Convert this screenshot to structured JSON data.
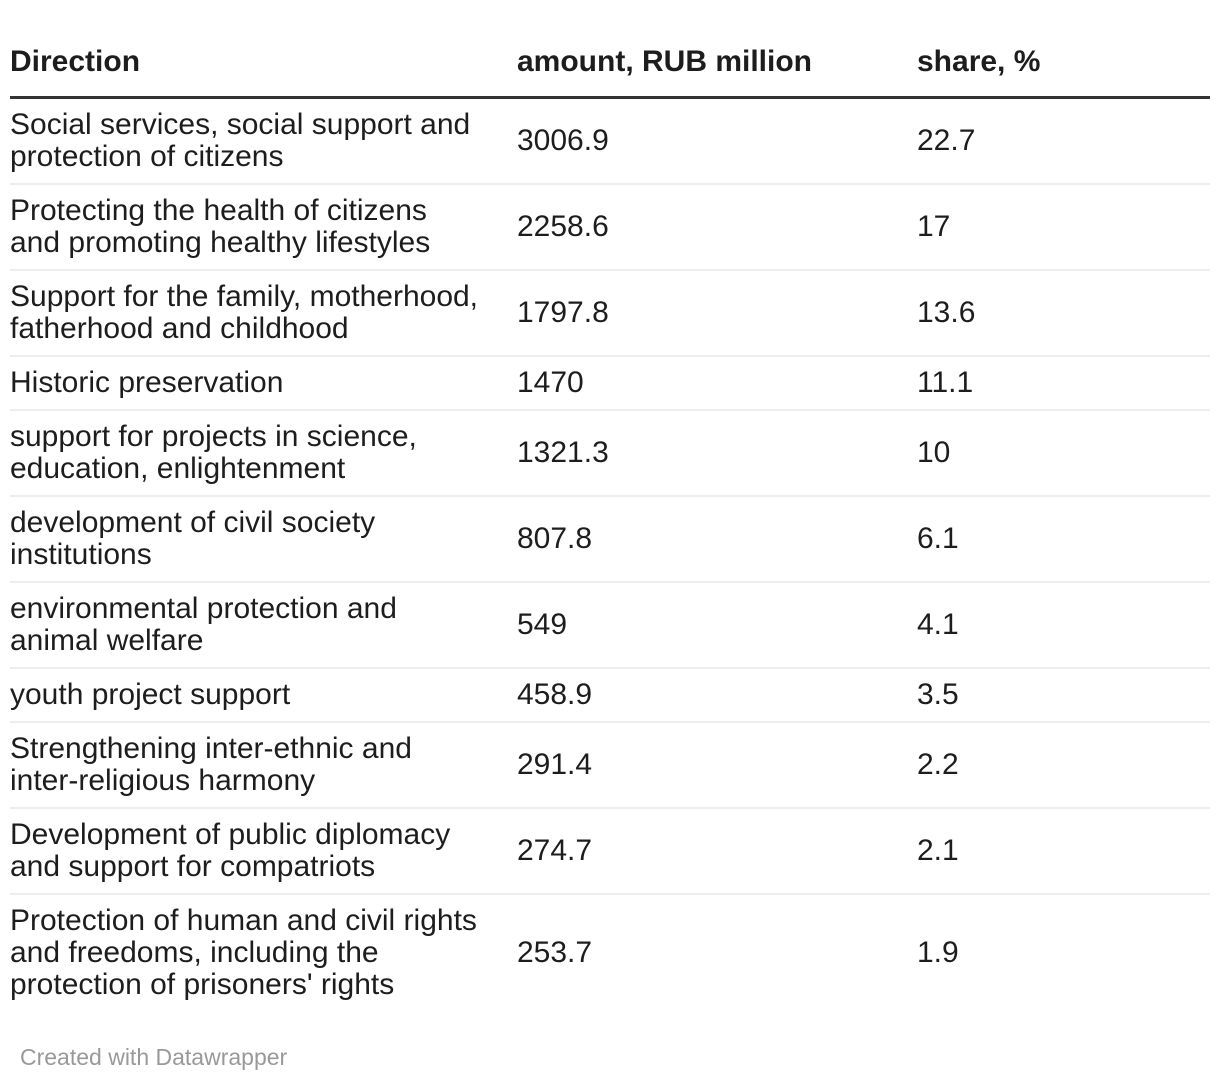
{
  "chart_data": {
    "type": "table",
    "title": "",
    "columns": [
      "Direction",
      "amount, RUB million",
      "share, %"
    ],
    "rows": [
      {
        "direction": "Social services, social support and\nprotection of citizens",
        "amount": "3006.9",
        "share": "22.7"
      },
      {
        "direction": "Protecting the health of citizens\nand promoting healthy lifestyles",
        "amount": "2258.6",
        "share": "17"
      },
      {
        "direction": "Support for the family, motherhood,\nfatherhood and childhood",
        "amount": "1797.8",
        "share": "13.6"
      },
      {
        "direction": "Historic preservation",
        "amount": "1470",
        "share": "11.1"
      },
      {
        "direction": "support for projects in science,\neducation, enlightenment",
        "amount": "1321.3",
        "share": "10"
      },
      {
        "direction": "development of civil society\ninstitutions",
        "amount": "807.8",
        "share": "6.1"
      },
      {
        "direction": "environmental protection and\nanimal welfare",
        "amount": "549",
        "share": "4.1"
      },
      {
        "direction": "youth project support",
        "amount": "458.9",
        "share": "3.5"
      },
      {
        "direction": "Strengthening inter-ethnic and\ninter-religious harmony",
        "amount": "291.4",
        "share": "2.2"
      },
      {
        "direction": "Development of public diplomacy\nand support for compatriots",
        "amount": "274.7",
        "share": "2.1"
      },
      {
        "direction": "Protection of human and civil rights\nand freedoms, including the\nprotection of prisoners' rights",
        "amount": "253.7",
        "share": "1.9"
      }
    ]
  },
  "footer": {
    "credit": "Created with Datawrapper"
  },
  "colors": {
    "background": "#ffffff",
    "text": "#1d1d1d",
    "header_rule": "#333333",
    "row_divider": "#eeeeee",
    "footer_text": "#999999"
  }
}
